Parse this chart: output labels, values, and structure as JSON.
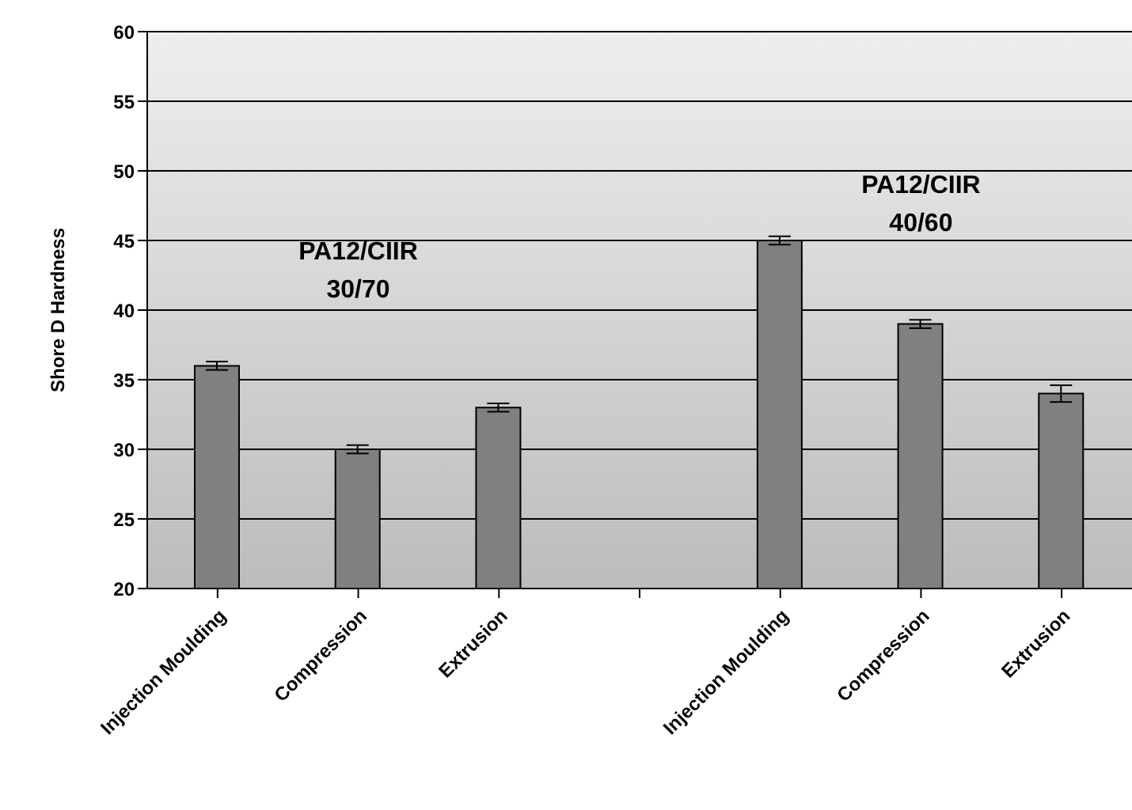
{
  "chart_data": {
    "type": "bar",
    "ylabel": "Shore D Hardness",
    "categories": [
      "Injection Moulding",
      "Compression",
      "Extrusion",
      null,
      "Injection Moulding",
      "Compression",
      "Extrusion"
    ],
    "values": [
      36,
      30,
      33,
      null,
      45,
      39,
      34
    ],
    "errors": [
      0.3,
      0.3,
      0.3,
      null,
      0.3,
      0.3,
      0.6
    ],
    "color": "#808080",
    "ylim": [
      20,
      60
    ],
    "yticks": [
      20,
      25,
      30,
      35,
      40,
      45,
      50,
      55,
      60
    ],
    "grid": "y",
    "annotations": [
      "PA12/CIIR 30/70",
      "PA12/CIIR 40/60"
    ]
  }
}
